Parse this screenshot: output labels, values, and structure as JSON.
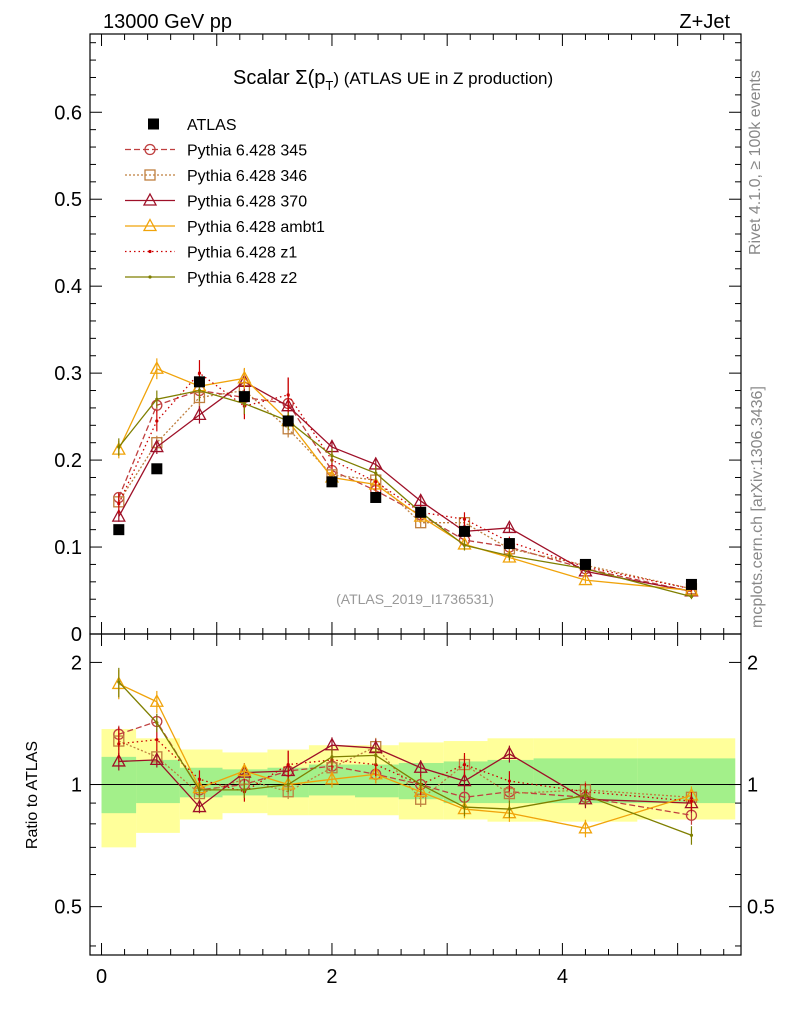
{
  "header": {
    "left": "13000 GeV pp",
    "right": "Z+Jet"
  },
  "side_labels": {
    "rivet": "Rivet 4.1.0, ≥ 100k events",
    "mcplots": "mcplots.cern.ch [arXiv:1306.3436]"
  },
  "chart_data": {
    "type": "line",
    "title_main": "Scalar Σ(p",
    "title_sub": "T",
    "title_rest": ") (ATLAS UE in Z production)",
    "watermark": "(ATLAS_2019_I1736531)",
    "ratio_ylabel": "Ratio to ATLAS",
    "x": [
      0.15,
      0.48,
      0.85,
      1.24,
      1.62,
      2.0,
      2.38,
      2.77,
      3.15,
      3.54,
      4.2,
      5.12
    ],
    "xlim": [
      -0.1,
      5.55
    ],
    "ylim": [
      0,
      0.69
    ],
    "ratio_ylim": [
      0.38,
      2.35
    ],
    "main_ticks": [
      "0",
      "0.1",
      "0.2",
      "0.3",
      "0.4",
      "0.5",
      "0.6"
    ],
    "main_tick_values": [
      0,
      0.1,
      0.2,
      0.3,
      0.4,
      0.5,
      0.6
    ],
    "ratio_ticks": [
      "0.5",
      "1",
      "2"
    ],
    "ratio_tick_values": [
      0.5,
      1,
      2
    ],
    "x_ticks": [
      "0",
      "2",
      "4"
    ],
    "x_tick_values": [
      0,
      2,
      4
    ],
    "data": {
      "name": "ATLAS",
      "values": [
        0.12,
        0.19,
        0.29,
        0.273,
        0.245,
        0.175,
        0.157,
        0.14,
        0.118,
        0.104,
        0.08,
        0.057
      ]
    },
    "series": [
      {
        "name": "Pythia 6.428 345",
        "color": "#bf3f3f",
        "marker": "circle",
        "dash": "6,3",
        "values": [
          0.157,
          0.263,
          0.28,
          0.272,
          0.265,
          0.188,
          0.165,
          0.137,
          0.108,
          0.1,
          0.075,
          0.049
        ],
        "errors": [
          0.006,
          0.008,
          0.02,
          0.02,
          0.03,
          0.008,
          0.008,
          0.006,
          0.006,
          0.005,
          0.004,
          0.003
        ],
        "ratio": [
          1.33,
          1.43,
          0.97,
          1.0,
          1.08,
          1.11,
          1.06,
          1.0,
          0.93,
          0.96,
          0.93,
          0.84
        ]
      },
      {
        "name": "Pythia 6.428 346",
        "color": "#bf7f3f",
        "marker": "square",
        "dash": "2,2",
        "values": [
          0.152,
          0.22,
          0.272,
          0.28,
          0.236,
          0.183,
          0.177,
          0.128,
          0.128,
          0.098,
          0.079,
          0.052
        ],
        "errors": [
          0.006,
          0.008,
          0.015,
          0.015,
          0.01,
          0.008,
          0.008,
          0.006,
          0.006,
          0.005,
          0.004,
          0.003
        ],
        "ratio": [
          1.28,
          1.17,
          0.95,
          1.03,
          0.96,
          1.1,
          1.24,
          0.92,
          1.12,
          0.95,
          0.97,
          0.93
        ]
      },
      {
        "name": "Pythia 6.428 370",
        "color": "#9e1028",
        "marker": "triangle",
        "dash": "",
        "values": [
          0.135,
          0.215,
          0.252,
          0.29,
          0.262,
          0.215,
          0.195,
          0.153,
          0.118,
          0.122,
          0.072,
          0.049
        ],
        "errors": [
          0.006,
          0.008,
          0.01,
          0.015,
          0.01,
          0.008,
          0.008,
          0.006,
          0.006,
          0.005,
          0.004,
          0.003
        ],
        "ratio": [
          1.14,
          1.15,
          0.88,
          1.07,
          1.08,
          1.25,
          1.23,
          1.1,
          1.02,
          1.19,
          0.92,
          0.9
        ]
      },
      {
        "name": "Pythia 6.428 ambt1",
        "color": "#f0a30a",
        "marker": "triangle",
        "dash": "",
        "values": [
          0.212,
          0.305,
          0.285,
          0.294,
          0.245,
          0.18,
          0.172,
          0.135,
          0.103,
          0.088,
          0.062,
          0.05
        ],
        "errors": [
          0.01,
          0.012,
          0.01,
          0.012,
          0.008,
          0.008,
          0.008,
          0.006,
          0.006,
          0.005,
          0.004,
          0.003
        ],
        "ratio": [
          1.77,
          1.6,
          0.98,
          1.08,
          1.0,
          1.03,
          1.06,
          0.96,
          0.87,
          0.85,
          0.78,
          0.94
        ]
      },
      {
        "name": "Pythia 6.428 z1",
        "color": "#cc0000",
        "marker": "dot",
        "dash": "1.5,3",
        "values": [
          0.15,
          0.245,
          0.3,
          0.262,
          0.275,
          0.2,
          0.175,
          0.14,
          0.132,
          0.106,
          0.077,
          0.052
        ],
        "errors": [
          0.012,
          0.012,
          0.015,
          0.015,
          0.02,
          0.01,
          0.01,
          0.008,
          0.008,
          0.006,
          0.004,
          0.003
        ],
        "ratio": [
          1.26,
          1.29,
          1.03,
          0.96,
          1.12,
          1.15,
          1.12,
          1.0,
          1.12,
          1.02,
          0.96,
          0.91
        ]
      },
      {
        "name": "Pythia 6.428 z2",
        "color": "#7f7f00",
        "marker": "dot",
        "dash": "",
        "values": [
          0.215,
          0.27,
          0.28,
          0.265,
          0.245,
          0.205,
          0.185,
          0.14,
          0.102,
          0.09,
          0.075,
          0.043
        ],
        "errors": [
          0.01,
          0.01,
          0.012,
          0.012,
          0.01,
          0.008,
          0.008,
          0.006,
          0.006,
          0.005,
          0.004,
          0.003
        ],
        "ratio": [
          1.79,
          1.42,
          0.97,
          0.97,
          1.0,
          1.17,
          1.18,
          1.0,
          0.88,
          0.87,
          0.94,
          0.75
        ]
      }
    ],
    "bands": {
      "x_edges": [
        0.0,
        0.3,
        0.68,
        1.05,
        1.44,
        1.8,
        2.2,
        2.58,
        2.97,
        3.35,
        3.75,
        4.65,
        5.5
      ],
      "inner_lo": [
        0.85,
        0.9,
        0.93,
        0.94,
        0.93,
        0.94,
        0.93,
        0.92,
        0.9,
        0.9,
        0.9,
        0.9
      ],
      "inner_hi": [
        1.17,
        1.15,
        1.1,
        1.09,
        1.1,
        1.12,
        1.12,
        1.13,
        1.14,
        1.15,
        1.16,
        1.16
      ],
      "outer_lo": [
        0.7,
        0.76,
        0.82,
        0.85,
        0.84,
        0.84,
        0.84,
        0.82,
        0.82,
        0.81,
        0.81,
        0.82
      ],
      "outer_hi": [
        1.37,
        1.3,
        1.22,
        1.2,
        1.22,
        1.25,
        1.25,
        1.27,
        1.28,
        1.3,
        1.3,
        1.3
      ]
    }
  }
}
